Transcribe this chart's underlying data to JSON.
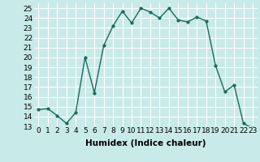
{
  "x": [
    0,
    1,
    2,
    3,
    4,
    5,
    6,
    7,
    8,
    9,
    10,
    11,
    12,
    13,
    14,
    15,
    16,
    17,
    18,
    19,
    20,
    21,
    22,
    23
  ],
  "y": [
    14.7,
    14.8,
    14.1,
    13.3,
    14.4,
    20.0,
    16.4,
    21.2,
    23.2,
    24.7,
    23.5,
    25.0,
    24.6,
    24.0,
    25.0,
    23.8,
    23.6,
    24.1,
    23.7,
    19.2,
    16.5,
    17.2,
    13.3,
    12.8
  ],
  "line_color": "#1a6b5a",
  "marker": "o",
  "marker_size": 2,
  "xlabel": "Humidex (Indice chaleur)",
  "xlim": [
    -0.5,
    23.5
  ],
  "ylim": [
    13,
    25.5
  ],
  "yticks": [
    13,
    14,
    15,
    16,
    17,
    18,
    19,
    20,
    21,
    22,
    23,
    24,
    25
  ],
  "xticks": [
    0,
    1,
    2,
    3,
    4,
    5,
    6,
    7,
    8,
    9,
    10,
    11,
    12,
    13,
    14,
    15,
    16,
    17,
    18,
    19,
    20,
    21,
    22,
    23
  ],
  "bg_color": "#c8eae8",
  "grid_color": "#ffffff",
  "tick_label_fontsize": 6.5,
  "xlabel_fontsize": 7.5,
  "line_width": 1.0
}
